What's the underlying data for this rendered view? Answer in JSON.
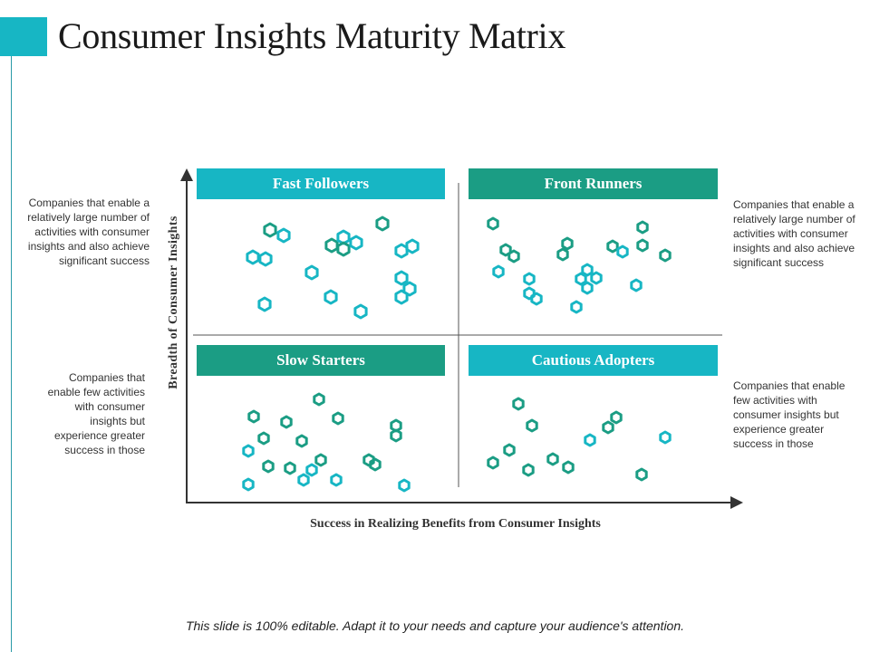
{
  "header": {
    "title": "Consumer Insights Maturity Matrix"
  },
  "axes": {
    "x_label": "Success in Realizing Benefits from Consumer Insights",
    "y_label": "Breadth of Consumer Insights"
  },
  "quadrants": {
    "top_left": {
      "label": "Fast Followers",
      "description": "Companies that enable a relatively large number of activities with consumer insights and also achieve significant success"
    },
    "top_right": {
      "label": "Front Runners",
      "description": "Companies that enable a relatively large number of activities with consumer insights and also achieve significant success"
    },
    "bottom_left": {
      "label": "Slow Starters",
      "description": "Companies that enable few activities with consumer insights but experience greater success in those"
    },
    "bottom_right": {
      "label": "Cautious Adopters",
      "description": "Companies that enable few activities with consumer insights but experience greater success in those"
    }
  },
  "colors": {
    "banner_teal": "#17b6c4",
    "banner_green": "#1b9d84",
    "marker_light": "#17b6c4",
    "marker_dark": "#1b9d84",
    "axis": "#333333"
  },
  "footer": {
    "note": "This slide is 100% editable. Adapt it to your needs and capture your audience's attention."
  }
}
